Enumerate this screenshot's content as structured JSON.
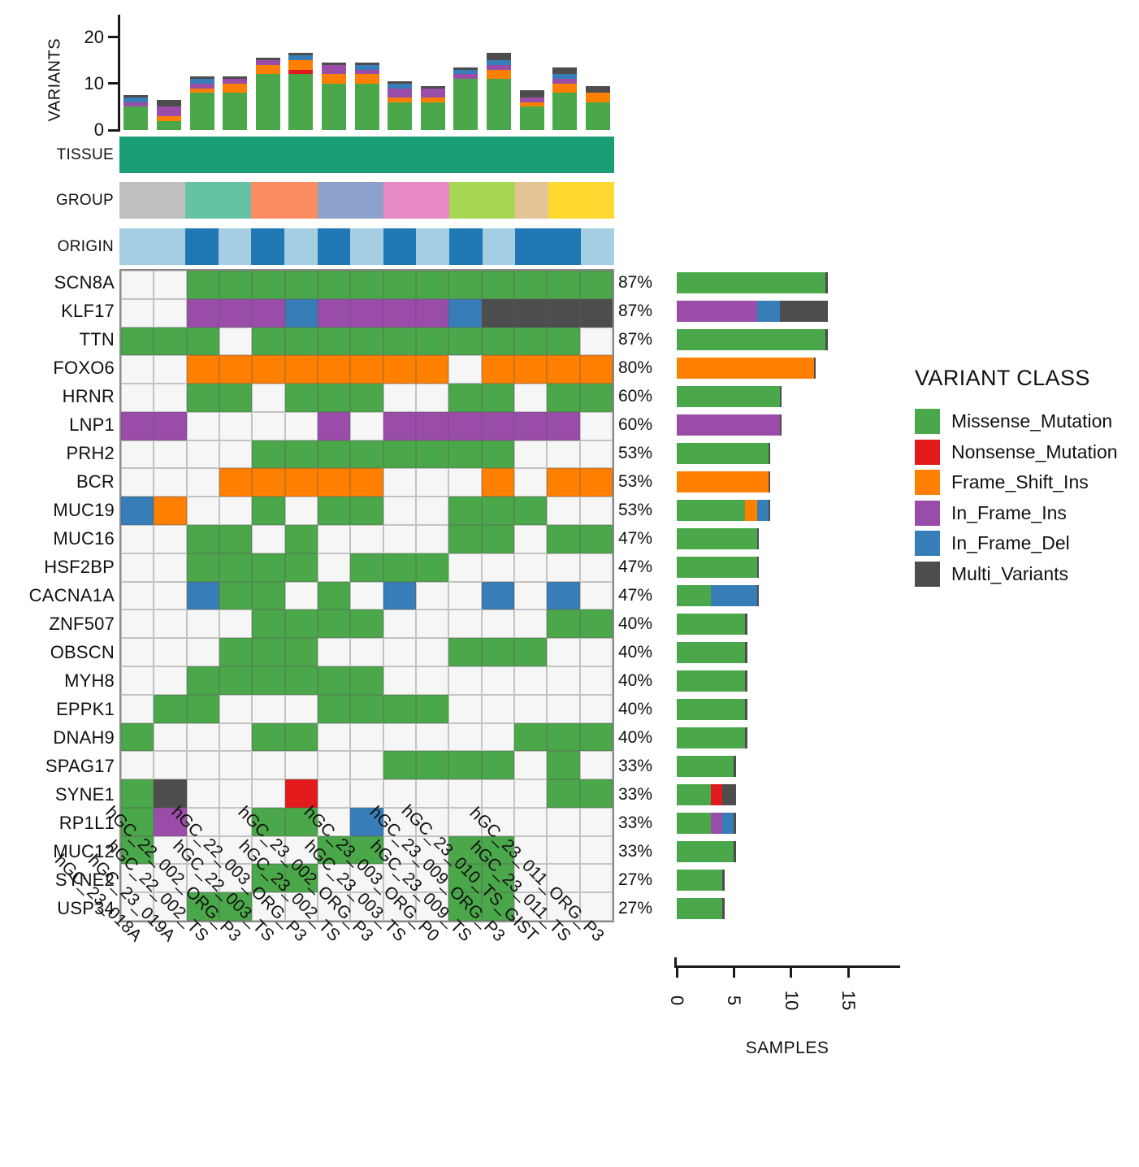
{
  "figure": {
    "top_chart": {
      "ylabel": "VARIANTS",
      "yticks": [
        0,
        10,
        20
      ],
      "ymax": 20
    },
    "right_chart": {
      "xlabel": "SAMPLES",
      "xticks": [
        0,
        5,
        10,
        15
      ],
      "xmax": 15
    },
    "annotation_rows": {
      "tissue": {
        "label": "TISSUE",
        "color": "#1B9E77"
      },
      "group": {
        "label": "GROUP",
        "blocks": [
          {
            "span": 2,
            "color": "#BFBFBF"
          },
          {
            "span": 2,
            "color": "#66C2A5"
          },
          {
            "span": 2,
            "color": "#FC8D62"
          },
          {
            "span": 2,
            "color": "#8DA0CB"
          },
          {
            "span": 2,
            "color": "#E78AC3"
          },
          {
            "span": 2,
            "color": "#A6D854"
          },
          {
            "span": 1,
            "color": "#E5C494"
          },
          {
            "span": 2,
            "color": "#FFD92F"
          }
        ]
      },
      "origin": {
        "label": "ORIGIN",
        "pattern": "LLDLDLDLDLDLDDL",
        "colors": {
          "L": "#A6CEE3",
          "D": "#1F78B4"
        }
      }
    },
    "legend": {
      "title": "VARIANT CLASS",
      "items": [
        {
          "label": "Missense_Mutation",
          "color": "#4BA84A"
        },
        {
          "label": "Nonsense_Mutation",
          "color": "#E31A1C"
        },
        {
          "label": "Frame_Shift_Ins",
          "color": "#FF7F00"
        },
        {
          "label": "In_Frame_Ins",
          "color": "#9A4DA8"
        },
        {
          "label": "In_Frame_Del",
          "color": "#377EB8"
        },
        {
          "label": "Multi_Variants",
          "color": "#4D4D4D"
        }
      ]
    }
  },
  "chart_data": {
    "type": "heatmap",
    "subtype": "oncoprint",
    "empty_cell_color": "#F6F6F6",
    "samples": [
      "hGC_23_018A",
      "hGC_23_019A",
      "hGC_22_002_TS",
      "hGC_22_002_ORG_P3",
      "hGC_22_003_TS",
      "hGC_22_003_ORG_P3",
      "hGC_23_002_TS",
      "hGC_23_002_ORG_P3",
      "hGC_23_003_TS",
      "hGC_23_003_ORG_P0",
      "hGC_23_009_TS",
      "hGC_23_009_ORG_P3",
      "hGC_23_010_TS_GIST",
      "hGC_23_011_TS",
      "hGC_23_011_ORG_P3"
    ],
    "class_map": {
      "G": {
        "label": "Missense_Mutation",
        "color": "#4BA84A"
      },
      "R": {
        "label": "Nonsense_Mutation",
        "color": "#E31A1C"
      },
      "O": {
        "label": "Frame_Shift_Ins",
        "color": "#FF7F00"
      },
      "P": {
        "label": "In_Frame_Ins",
        "color": "#9A4DA8"
      },
      "B": {
        "label": "In_Frame_Del",
        "color": "#377EB8"
      },
      "D": {
        "label": "Multi_Variants",
        "color": "#4D4D4D"
      }
    },
    "stack_order": [
      "G",
      "R",
      "O",
      "P",
      "B",
      "D"
    ],
    "genes": [
      {
        "name": "SCN8A",
        "pct": "87%",
        "cells": "..GGGGGGGGGGGGG"
      },
      {
        "name": "KLF17",
        "pct": "87%",
        "cells": "..PPPBPPPPBDDDD"
      },
      {
        "name": "TTN",
        "pct": "87%",
        "cells": "GGG.GGGGGGGGGG."
      },
      {
        "name": "FOXO6",
        "pct": "80%",
        "cells": "..OOOOOOOO.OOOO"
      },
      {
        "name": "HRNR",
        "pct": "60%",
        "cells": "..GG.GGG..GG.GG"
      },
      {
        "name": "LNP1",
        "pct": "60%",
        "cells": "PP....P.PPPPPP."
      },
      {
        "name": "PRH2",
        "pct": "53%",
        "cells": "....GGGGGGGG..."
      },
      {
        "name": "BCR",
        "pct": "53%",
        "cells": "...OOOOO...O.OO"
      },
      {
        "name": "MUC19",
        "pct": "53%",
        "cells": "BO..G.GG..GGG.."
      },
      {
        "name": "MUC16",
        "pct": "47%",
        "cells": "..GG.G....GG.GG"
      },
      {
        "name": "HSF2BP",
        "pct": "47%",
        "cells": "..GGGG.GGG....."
      },
      {
        "name": "CACNA1A",
        "pct": "47%",
        "cells": "..BGG.G.B..B.B."
      },
      {
        "name": "ZNF507",
        "pct": "40%",
        "cells": "....GGGG.....GG"
      },
      {
        "name": "OBSCN",
        "pct": "40%",
        "cells": "...GGG....GGG.."
      },
      {
        "name": "MYH8",
        "pct": "40%",
        "cells": "..GGGGGG......."
      },
      {
        "name": "EPPK1",
        "pct": "40%",
        "cells": ".GG...GGGG....."
      },
      {
        "name": "DNAH9",
        "pct": "40%",
        "cells": "G...GG......GGG"
      },
      {
        "name": "SPAG17",
        "pct": "33%",
        "cells": "........GGGG.G."
      },
      {
        "name": "SYNE1",
        "pct": "33%",
        "cells": "GD...R.......GG"
      },
      {
        "name": "RP1L1",
        "pct": "33%",
        "cells": "GP..GG.B......."
      },
      {
        "name": "MUC12",
        "pct": "33%",
        "cells": "G.....GG..GG..."
      },
      {
        "name": "SYNE2",
        "pct": "27%",
        "cells": "....GG....GG..."
      },
      {
        "name": "USP34",
        "pct": "27%",
        "cells": "..GG......GG..."
      }
    ],
    "per_sample_variant_totals": [
      7,
      6,
      11,
      11,
      15,
      16,
      14,
      14,
      10,
      9,
      13,
      16,
      8,
      13,
      9
    ],
    "per_gene_sample_totals": [
      13,
      13,
      13,
      12,
      9,
      9,
      8,
      8,
      8,
      7,
      7,
      7,
      6,
      6,
      6,
      6,
      6,
      5,
      5,
      5,
      5,
      4,
      4
    ]
  }
}
